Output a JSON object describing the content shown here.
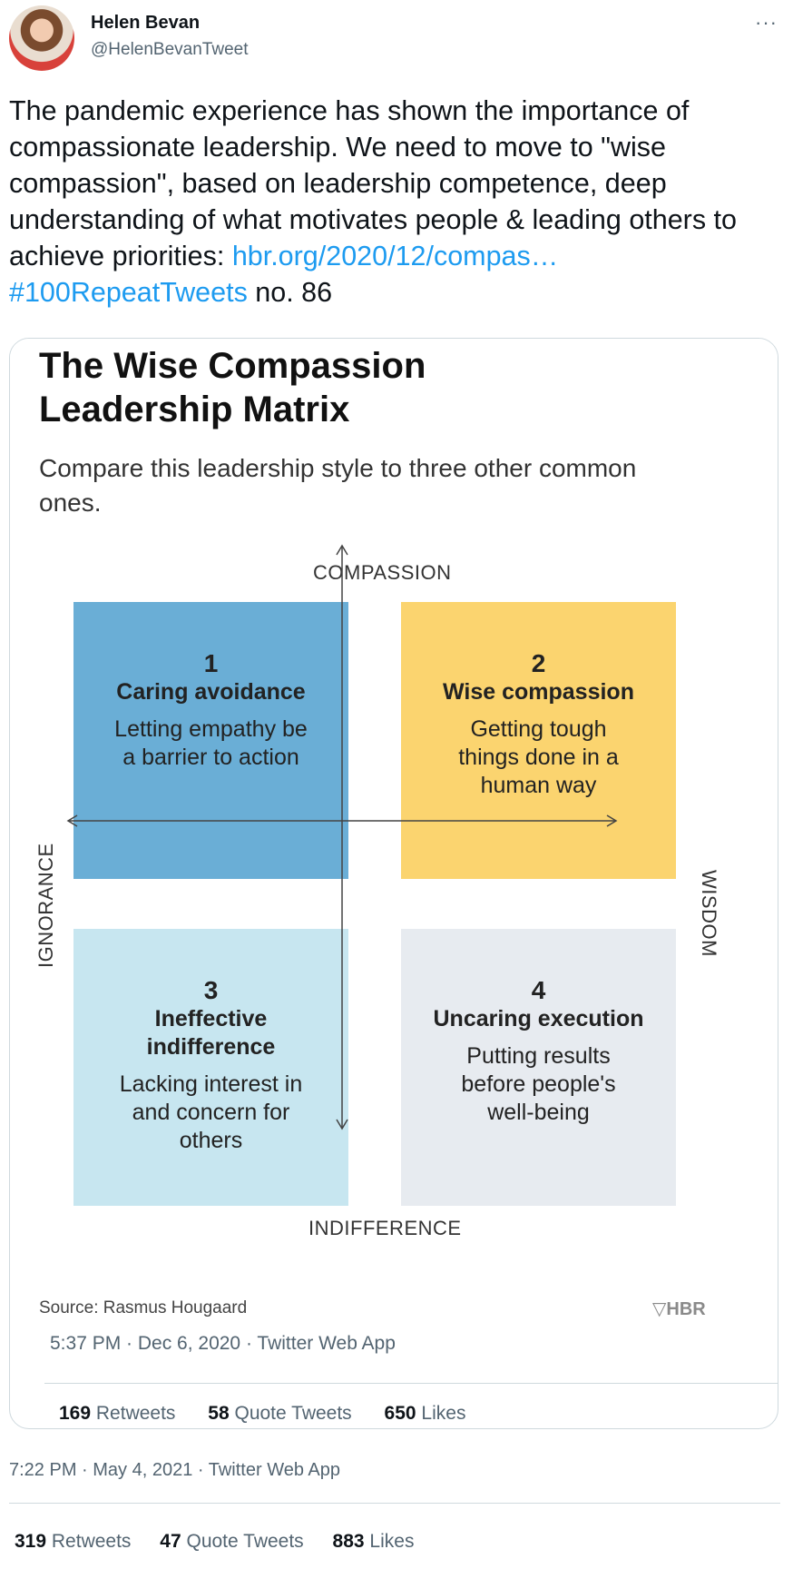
{
  "author": {
    "name": "Helen Bevan",
    "handle": "@HelenBevanTweet"
  },
  "tweet": {
    "text_before_link": "The pandemic experience has shown the importance of compassionate leadership. We need to move to \"wise compassion\", based on leadership competence, deep understanding of what motivates people & leading others to achieve priorities: ",
    "link": "hbr.org/2020/12/compas…",
    "hashtag": "#100RepeatTweets",
    "text_after_hashtag": " no. 86"
  },
  "matrix": {
    "title": "The Wise Compassion Leadership Matrix",
    "subtitle": "Compare this leadership style to three other common ones.",
    "axes": {
      "top": "COMPASSION",
      "bottom": "INDIFFERENCE",
      "left": "IGNORANCE",
      "right": "WISDOM"
    },
    "quadrants": [
      {
        "number": "1",
        "name": "Caring avoidance",
        "description": "Letting empathy be a barrier to action",
        "color": "#6aaed6"
      },
      {
        "number": "2",
        "name": "Wise compassion",
        "description": "Getting tough things done in a human way",
        "color": "#fbd46f"
      },
      {
        "number": "3",
        "name": "Ineffective indifference",
        "description": "Lacking interest in and concern for others",
        "color": "#c7e6f0"
      },
      {
        "number": "4",
        "name": "Uncaring execution",
        "description": "Putting results before people's well-being",
        "color": "#e7ebf0"
      }
    ],
    "source": "Source: Rasmus Hougaard",
    "logo_text": "HBR"
  },
  "quoted_tweet": {
    "timestamp": "5:37 PM · Dec 6, 2020 · Twitter Web App",
    "retweets_count": "169",
    "retweets_label": "Retweets",
    "quote_count": "58",
    "quote_label": "Quote Tweets",
    "likes_count": "650",
    "likes_label": "Likes"
  },
  "post": {
    "timestamp": "7:22 PM · May 4, 2021 · Twitter Web App",
    "retweets_count": "319",
    "retweets_label": "Retweets",
    "quote_count": "47",
    "quote_label": "Quote Tweets",
    "likes_count": "883",
    "likes_label": "Likes"
  },
  "icons": {
    "more": "more-horizontal-icon",
    "logo": "shield-icon"
  },
  "colors": {
    "link": "#1d9bf0",
    "secondary_text": "#536471"
  }
}
